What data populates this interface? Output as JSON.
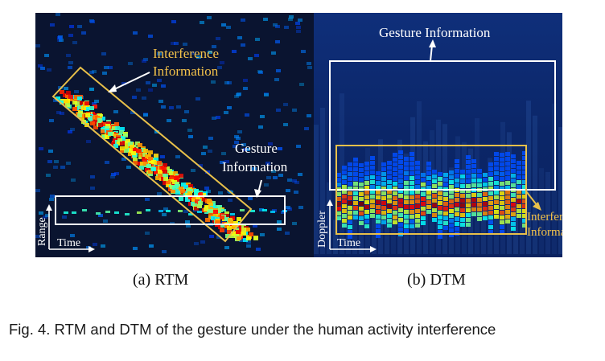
{
  "figure": {
    "rtm": {
      "interference_label": [
        "Interference",
        "Information"
      ],
      "gesture_label": [
        "Gesture",
        "Information"
      ],
      "x_axis": "Time",
      "y_axis": "Range",
      "subcaption": "(a)  RTM",
      "colors": {
        "interference_box": "#e8c04a",
        "gesture_box": "#ffffff",
        "background": "#0a1430"
      }
    },
    "dtm": {
      "gesture_label": "Gesture Information",
      "interference_label": [
        "Interference",
        "Information"
      ],
      "x_axis": "Time",
      "y_axis": "Doppler",
      "subcaption": "(b)  DTM",
      "colors": {
        "interference_box": "#e8c04a",
        "gesture_box": "#ffffff",
        "background": "#0d2a6e"
      }
    },
    "caption": "Fig. 4.  RTM and DTM of the gesture under the human activity interference"
  }
}
